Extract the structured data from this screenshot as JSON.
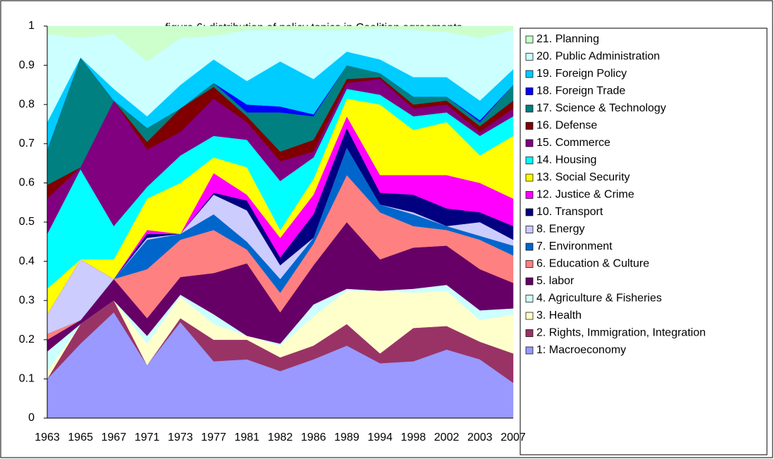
{
  "chart_data": {
    "type": "stacked_area",
    "title": "figure 6: distribution of policy topics in Coalition agreements",
    "categories": [
      "1963",
      "1965",
      "1967",
      "1971",
      "1973",
      "1977",
      "1981",
      "1982",
      "1986",
      "1989",
      "1994",
      "1998",
      "2002",
      "2003",
      "2007"
    ],
    "ylim": [
      0,
      1
    ],
    "yticks": [
      0,
      0.1,
      0.2,
      0.3,
      0.4,
      0.5,
      0.6,
      0.7,
      0.8,
      0.9,
      1
    ],
    "legend": "right",
    "series": [
      {
        "name": "1: Macroeconomy",
        "color": "#9999ff",
        "values": [
          0.1,
          0.19,
          0.27,
          0.135,
          0.245,
          0.145,
          0.15,
          0.12,
          0.15,
          0.185,
          0.14,
          0.145,
          0.175,
          0.15,
          0.09
        ]
      },
      {
        "name": "2. Rights, Immigration, Integration",
        "color": "#993366",
        "values": [
          0,
          0.05,
          0.03,
          0,
          0.01,
          0.055,
          0.05,
          0.035,
          0.035,
          0.055,
          0.025,
          0.085,
          0.06,
          0.045,
          0.075
        ]
      },
      {
        "name": "3. Health",
        "color": "#ffffcc",
        "values": [
          0.02,
          0,
          0,
          0.055,
          0.055,
          0.04,
          0.01,
          0.03,
          0.075,
          0.085,
          0.16,
          0.09,
          0.09,
          0.055,
          0.1
        ]
      },
      {
        "name": "4. Agriculture & Fisheries",
        "color": "#ccffff",
        "values": [
          0.05,
          0,
          0,
          0.02,
          0.005,
          0.025,
          0,
          0.005,
          0.03,
          0.005,
          0,
          0.01,
          0.015,
          0.025,
          0.015
        ]
      },
      {
        "name": "5. labor",
        "color": "#660066",
        "values": [
          0.03,
          0.01,
          0.055,
          0.045,
          0.045,
          0.105,
          0.185,
          0.08,
          0.1,
          0.17,
          0.08,
          0.105,
          0.1,
          0.105,
          0.065
        ]
      },
      {
        "name": "6. Education & Culture",
        "color": "#ff8080",
        "values": [
          0.015,
          0,
          0,
          0.125,
          0.095,
          0.11,
          0.035,
          0.05,
          0.055,
          0.12,
          0.12,
          0.055,
          0.04,
          0.075,
          0.07
        ]
      },
      {
        "name": "7. Environment",
        "color": "#0066cc",
        "values": [
          0,
          0,
          0,
          0.075,
          0.015,
          0.04,
          0.02,
          0.035,
          0.015,
          0.07,
          0.02,
          0.03,
          0.01,
          0.01,
          0.025
        ]
      },
      {
        "name": "8. Energy",
        "color": "#ccccff",
        "values": [
          0.05,
          0.155,
          0,
          0.005,
          0,
          0.05,
          0.08,
          0.035,
          0,
          0,
          0,
          0.005,
          0,
          0.035,
          0.015
        ]
      },
      {
        "name": "10. Transport",
        "color": "#000080",
        "values": [
          0,
          0,
          0,
          0.01,
          0,
          0.005,
          0.025,
          0.02,
          0.06,
          0.05,
          0.03,
          0.045,
          0.045,
          0.025,
          0.035
        ]
      },
      {
        "name": "12. Justice & Crime",
        "color": "#ff00ff",
        "values": [
          0,
          0,
          0,
          0.01,
          0,
          0.05,
          0.015,
          0.05,
          0.05,
          0.03,
          0.045,
          0.05,
          0.085,
          0.075,
          0.07
        ]
      },
      {
        "name": "13. Social Security",
        "color": "#ffff00",
        "values": [
          0.065,
          0,
          0.05,
          0.08,
          0.13,
          0.04,
          0.07,
          0.02,
          0.04,
          0.045,
          0.18,
          0.115,
          0.135,
          0.07,
          0.16
        ]
      },
      {
        "name": "14. Housing",
        "color": "#00ffff",
        "values": [
          0.14,
          0.23,
          0.085,
          0.03,
          0.07,
          0.055,
          0.07,
          0.125,
          0.055,
          0.025,
          0.025,
          0.035,
          0.025,
          0.05,
          0.05
        ]
      },
      {
        "name": "15. Commerce",
        "color": "#800080",
        "values": [
          0.09,
          0.005,
          0.32,
          0.095,
          0.06,
          0.095,
          0.045,
          0.05,
          0.015,
          0.015,
          0.04,
          0.02,
          0.02,
          0.01,
          0.02
        ]
      },
      {
        "name": "16. Defense",
        "color": "#800000",
        "values": [
          0.035,
          0,
          0,
          0.02,
          0.06,
          0.03,
          0.015,
          0.025,
          0.03,
          0.01,
          0.005,
          0.01,
          0.01,
          0.015,
          0.02
        ]
      },
      {
        "name": "17. Science & Technology",
        "color": "#008080",
        "values": [
          0.09,
          0.28,
          0,
          0.035,
          0,
          0.01,
          0.01,
          0.1,
          0.06,
          0.035,
          0.01,
          0.02,
          0.01,
          0.01,
          0.04
        ]
      },
      {
        "name": "18. Foreign Trade",
        "color": "#0000ff",
        "values": [
          0,
          0,
          0,
          0,
          0,
          0,
          0.02,
          0.015,
          0.005,
          0,
          0,
          0,
          0,
          0.005,
          0
        ]
      },
      {
        "name": "19. Foreign Policy",
        "color": "#00ccff",
        "values": [
          0.07,
          0,
          0.03,
          0.03,
          0.06,
          0.06,
          0.06,
          0.115,
          0.09,
          0.035,
          0.035,
          0.05,
          0.05,
          0.05,
          0.04
        ]
      },
      {
        "name": "20. Public Administration",
        "color": "#ccffff",
        "values": [
          0.225,
          0.05,
          0.14,
          0.14,
          0.12,
          0.06,
          0.13,
          0.08,
          0.125,
          0.055,
          0.08,
          0.12,
          0.115,
          0.16,
          0.1
        ]
      },
      {
        "name": "21. Planning",
        "color": "#ccffcc",
        "values": [
          0.02,
          0.03,
          0.02,
          0.09,
          0.03,
          0.025,
          0.01,
          0.01,
          0.01,
          0.01,
          0.005,
          0.01,
          0.015,
          0.03,
          0.01
        ]
      }
    ]
  }
}
